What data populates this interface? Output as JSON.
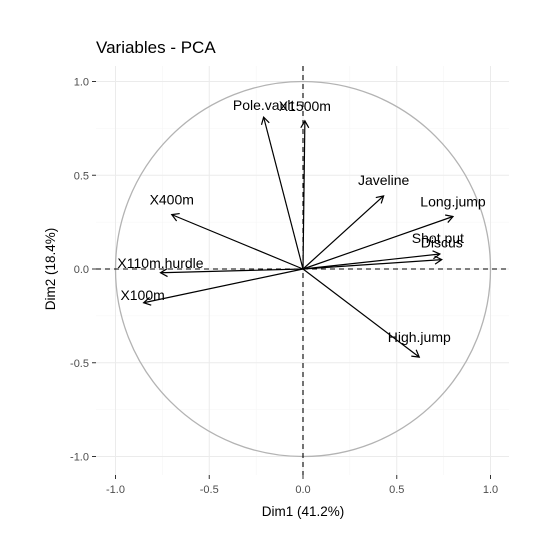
{
  "chart_data": {
    "type": "scatter",
    "title": "Variables - PCA",
    "xlabel": "Dim1 (41.2%)",
    "ylabel": "Dim2 (18.4%)",
    "xlim": [
      -1.0,
      1.0
    ],
    "ylim": [
      -1.0,
      1.0
    ],
    "x_ticks": [
      -1.0,
      -0.5,
      0.0,
      0.5,
      1.0
    ],
    "x_tick_labels": [
      "-1.0",
      "-0.5",
      "0.0",
      "0.5",
      "1.0"
    ],
    "y_ticks": [
      -1.0,
      -0.5,
      0.0,
      0.5,
      1.0
    ],
    "y_tick_labels": [
      "-1.0",
      "-0.5",
      "0.0",
      "0.5",
      "1.0"
    ],
    "grid": true,
    "correlation_circle": true,
    "variables": [
      {
        "name": "X100m",
        "x": -0.85,
        "y": -0.18
      },
      {
        "name": "Long.jump",
        "x": 0.8,
        "y": 0.28
      },
      {
        "name": "Shot.put",
        "x": 0.73,
        "y": 0.08
      },
      {
        "name": "High.jump",
        "x": 0.62,
        "y": -0.47
      },
      {
        "name": "X400m",
        "x": -0.7,
        "y": 0.29
      },
      {
        "name": "X110m.hurdle",
        "x": -0.76,
        "y": -0.02
      },
      {
        "name": "Discus",
        "x": 0.74,
        "y": 0.05
      },
      {
        "name": "Pole.vault",
        "x": -0.21,
        "y": 0.81
      },
      {
        "name": "Javeline",
        "x": 0.43,
        "y": 0.39
      },
      {
        "name": "X1500m",
        "x": 0.01,
        "y": 0.79
      }
    ]
  }
}
